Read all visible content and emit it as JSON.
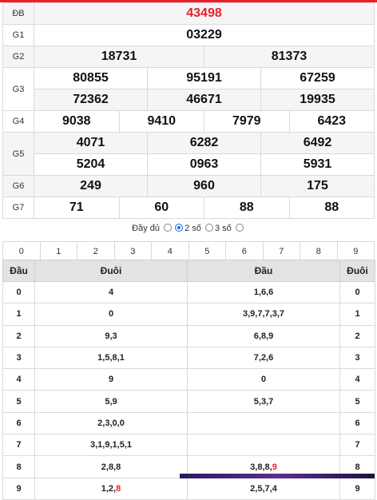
{
  "prizes": {
    "db": {
      "label": "ĐB",
      "values": [
        "43498"
      ]
    },
    "g1": {
      "label": "G1",
      "values": [
        "03229"
      ]
    },
    "g2": {
      "label": "G2",
      "values": [
        "18731",
        "81373"
      ]
    },
    "g3": {
      "label": "G3",
      "values": [
        "80855",
        "95191",
        "67259",
        "72362",
        "46671",
        "19935"
      ]
    },
    "g4": {
      "label": "G4",
      "values": [
        "9038",
        "9410",
        "7979",
        "6423"
      ]
    },
    "g5": {
      "label": "G5",
      "values": [
        "4071",
        "6282",
        "6492",
        "5204",
        "0963",
        "5931"
      ]
    },
    "g6": {
      "label": "G6",
      "values": [
        "249",
        "960",
        "175"
      ]
    },
    "g7": {
      "label": "G7",
      "values": [
        "71",
        "60",
        "88",
        "88"
      ]
    }
  },
  "options": {
    "full": "Đầy đủ",
    "two": "2 số",
    "three": "3 số",
    "selected": "2 số"
  },
  "digits": [
    "0",
    "1",
    "2",
    "3",
    "4",
    "5",
    "6",
    "7",
    "8",
    "9"
  ],
  "loto": {
    "headers": {
      "dau": "Đầu",
      "duoi": "Đuôi",
      "dau2": "Đầu",
      "duoi2": "Đuôi"
    },
    "rows": [
      {
        "d": "0",
        "tail": "4",
        "head": "1,6,6",
        "d2": "0"
      },
      {
        "d": "1",
        "tail": "0",
        "head": "3,9,7,7,3,7",
        "d2": "1"
      },
      {
        "d": "2",
        "tail": "9,3",
        "head": "6,8,9",
        "d2": "2"
      },
      {
        "d": "3",
        "tail": "1,5,8,1",
        "head": "7,2,6",
        "d2": "3"
      },
      {
        "d": "4",
        "tail": "9",
        "head": "0",
        "d2": "4"
      },
      {
        "d": "5",
        "tail": "5,9",
        "head": "5,3,7",
        "d2": "5"
      },
      {
        "d": "6",
        "tail": "2,3,0,0",
        "head": "",
        "d2": "6"
      },
      {
        "d": "7",
        "tail": "3,1,9,1,5,1",
        "head": "",
        "d2": "7"
      },
      {
        "d": "8",
        "tail": "2,8,8",
        "head_pre": "3,8,8,",
        "head_red": "9",
        "d2": "8"
      },
      {
        "d": "9",
        "tail_pre": "1,2,",
        "tail_red": "8",
        "head": "2,5,7,4",
        "d2": "9"
      }
    ]
  },
  "colors": {
    "accent": "#e8202a",
    "radio_on": "#1a73e8"
  }
}
